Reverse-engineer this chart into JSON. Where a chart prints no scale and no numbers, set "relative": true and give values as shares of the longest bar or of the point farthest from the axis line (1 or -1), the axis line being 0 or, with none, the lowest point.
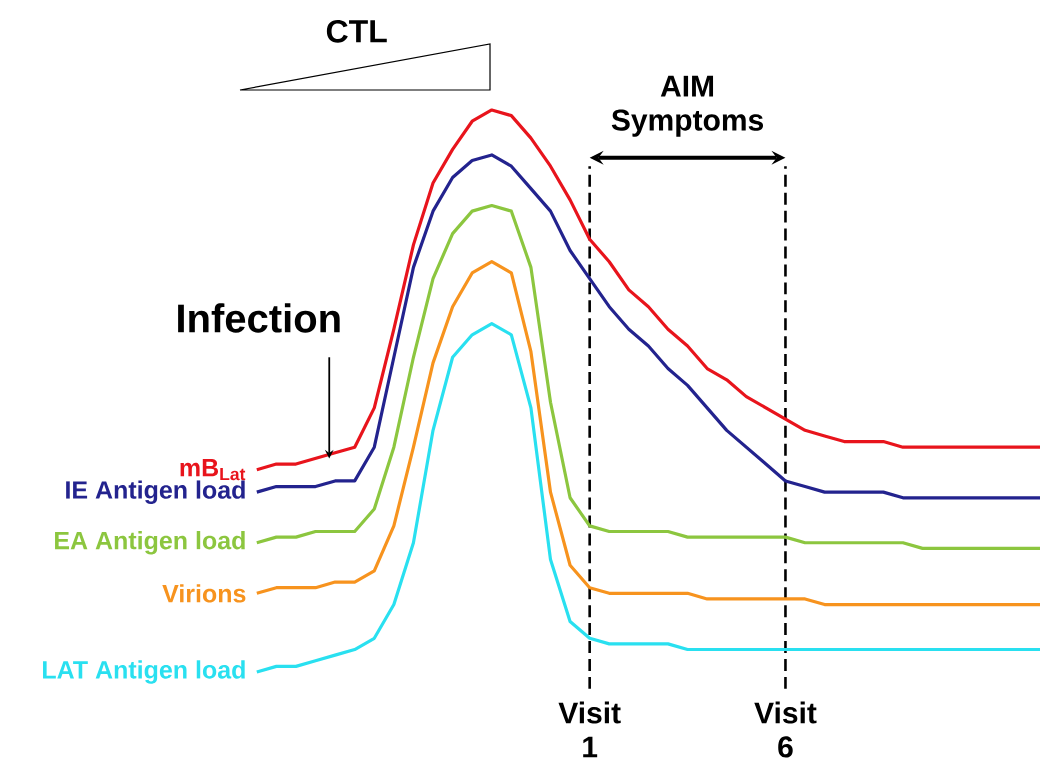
{
  "chart_data": {
    "type": "line",
    "relative": true,
    "categories": [
      null,
      null,
      null,
      null,
      null,
      null,
      null,
      null,
      null,
      null,
      null,
      null,
      null,
      null,
      null,
      null,
      null,
      null,
      null,
      null,
      null,
      null,
      null,
      null,
      null,
      null,
      null,
      null,
      null,
      null,
      null,
      null,
      null,
      null,
      null,
      null,
      null,
      null,
      null,
      null,
      null
    ],
    "series": [
      {
        "name": "mB$_{Lat}$",
        "color": "#e8141c",
        "values": [
          0.36,
          0.37,
          0.37,
          0.38,
          0.39,
          0.4,
          0.47,
          0.61,
          0.76,
          0.87,
          0.93,
          0.98,
          1.0,
          0.99,
          0.95,
          0.9,
          0.84,
          0.77,
          0.73,
          0.68,
          0.65,
          0.61,
          0.58,
          0.54,
          0.52,
          0.49,
          0.47,
          0.45,
          0.43,
          0.42,
          0.41,
          0.41,
          0.41,
          0.4,
          0.4,
          0.4,
          0.4,
          0.4,
          0.4,
          0.4,
          0.4
        ]
      },
      {
        "name": "IE Antigen load",
        "color": "#23238e",
        "values": [
          0.32,
          0.33,
          0.33,
          0.33,
          0.34,
          0.34,
          0.4,
          0.56,
          0.72,
          0.82,
          0.88,
          0.91,
          0.92,
          0.9,
          0.86,
          0.82,
          0.75,
          0.7,
          0.65,
          0.61,
          0.58,
          0.54,
          0.51,
          0.47,
          0.43,
          0.4,
          0.37,
          0.34,
          0.33,
          0.32,
          0.32,
          0.32,
          0.32,
          0.31,
          0.31,
          0.31,
          0.31,
          0.31,
          0.31,
          0.31,
          0.31
        ]
      },
      {
        "name": "EA Antigen load",
        "color": "#8cc63f",
        "values": [
          0.23,
          0.24,
          0.24,
          0.25,
          0.25,
          0.25,
          0.29,
          0.4,
          0.56,
          0.7,
          0.78,
          0.82,
          0.83,
          0.82,
          0.72,
          0.48,
          0.31,
          0.26,
          0.25,
          0.25,
          0.25,
          0.25,
          0.24,
          0.24,
          0.24,
          0.24,
          0.24,
          0.24,
          0.23,
          0.23,
          0.23,
          0.23,
          0.23,
          0.23,
          0.22,
          0.22,
          0.22,
          0.22,
          0.22,
          0.22,
          0.22
        ]
      },
      {
        "name": "Virions",
        "color": "#f7931e",
        "values": [
          0.14,
          0.15,
          0.15,
          0.15,
          0.16,
          0.16,
          0.18,
          0.26,
          0.4,
          0.55,
          0.65,
          0.71,
          0.73,
          0.71,
          0.57,
          0.32,
          0.19,
          0.15,
          0.14,
          0.14,
          0.14,
          0.14,
          0.14,
          0.13,
          0.13,
          0.13,
          0.13,
          0.13,
          0.13,
          0.12,
          0.12,
          0.12,
          0.12,
          0.12,
          0.12,
          0.12,
          0.12,
          0.12,
          0.12,
          0.12,
          0.12
        ]
      },
      {
        "name": "LAT Antigen load",
        "color": "#29e0f0",
        "values": [
          0.0,
          0.01,
          0.01,
          0.02,
          0.03,
          0.04,
          0.06,
          0.12,
          0.23,
          0.43,
          0.56,
          0.6,
          0.62,
          0.6,
          0.47,
          0.2,
          0.09,
          0.06,
          0.05,
          0.05,
          0.05,
          0.05,
          0.04,
          0.04,
          0.04,
          0.04,
          0.04,
          0.04,
          0.04,
          0.04,
          0.04,
          0.04,
          0.04,
          0.04,
          0.04,
          0.04,
          0.04,
          0.04,
          0.04,
          0.04,
          0.04
        ]
      }
    ],
    "annotations": [
      "CTL",
      "AIM Symptoms",
      "Infection",
      "Visit 1",
      "Visit 6"
    ]
  }
}
